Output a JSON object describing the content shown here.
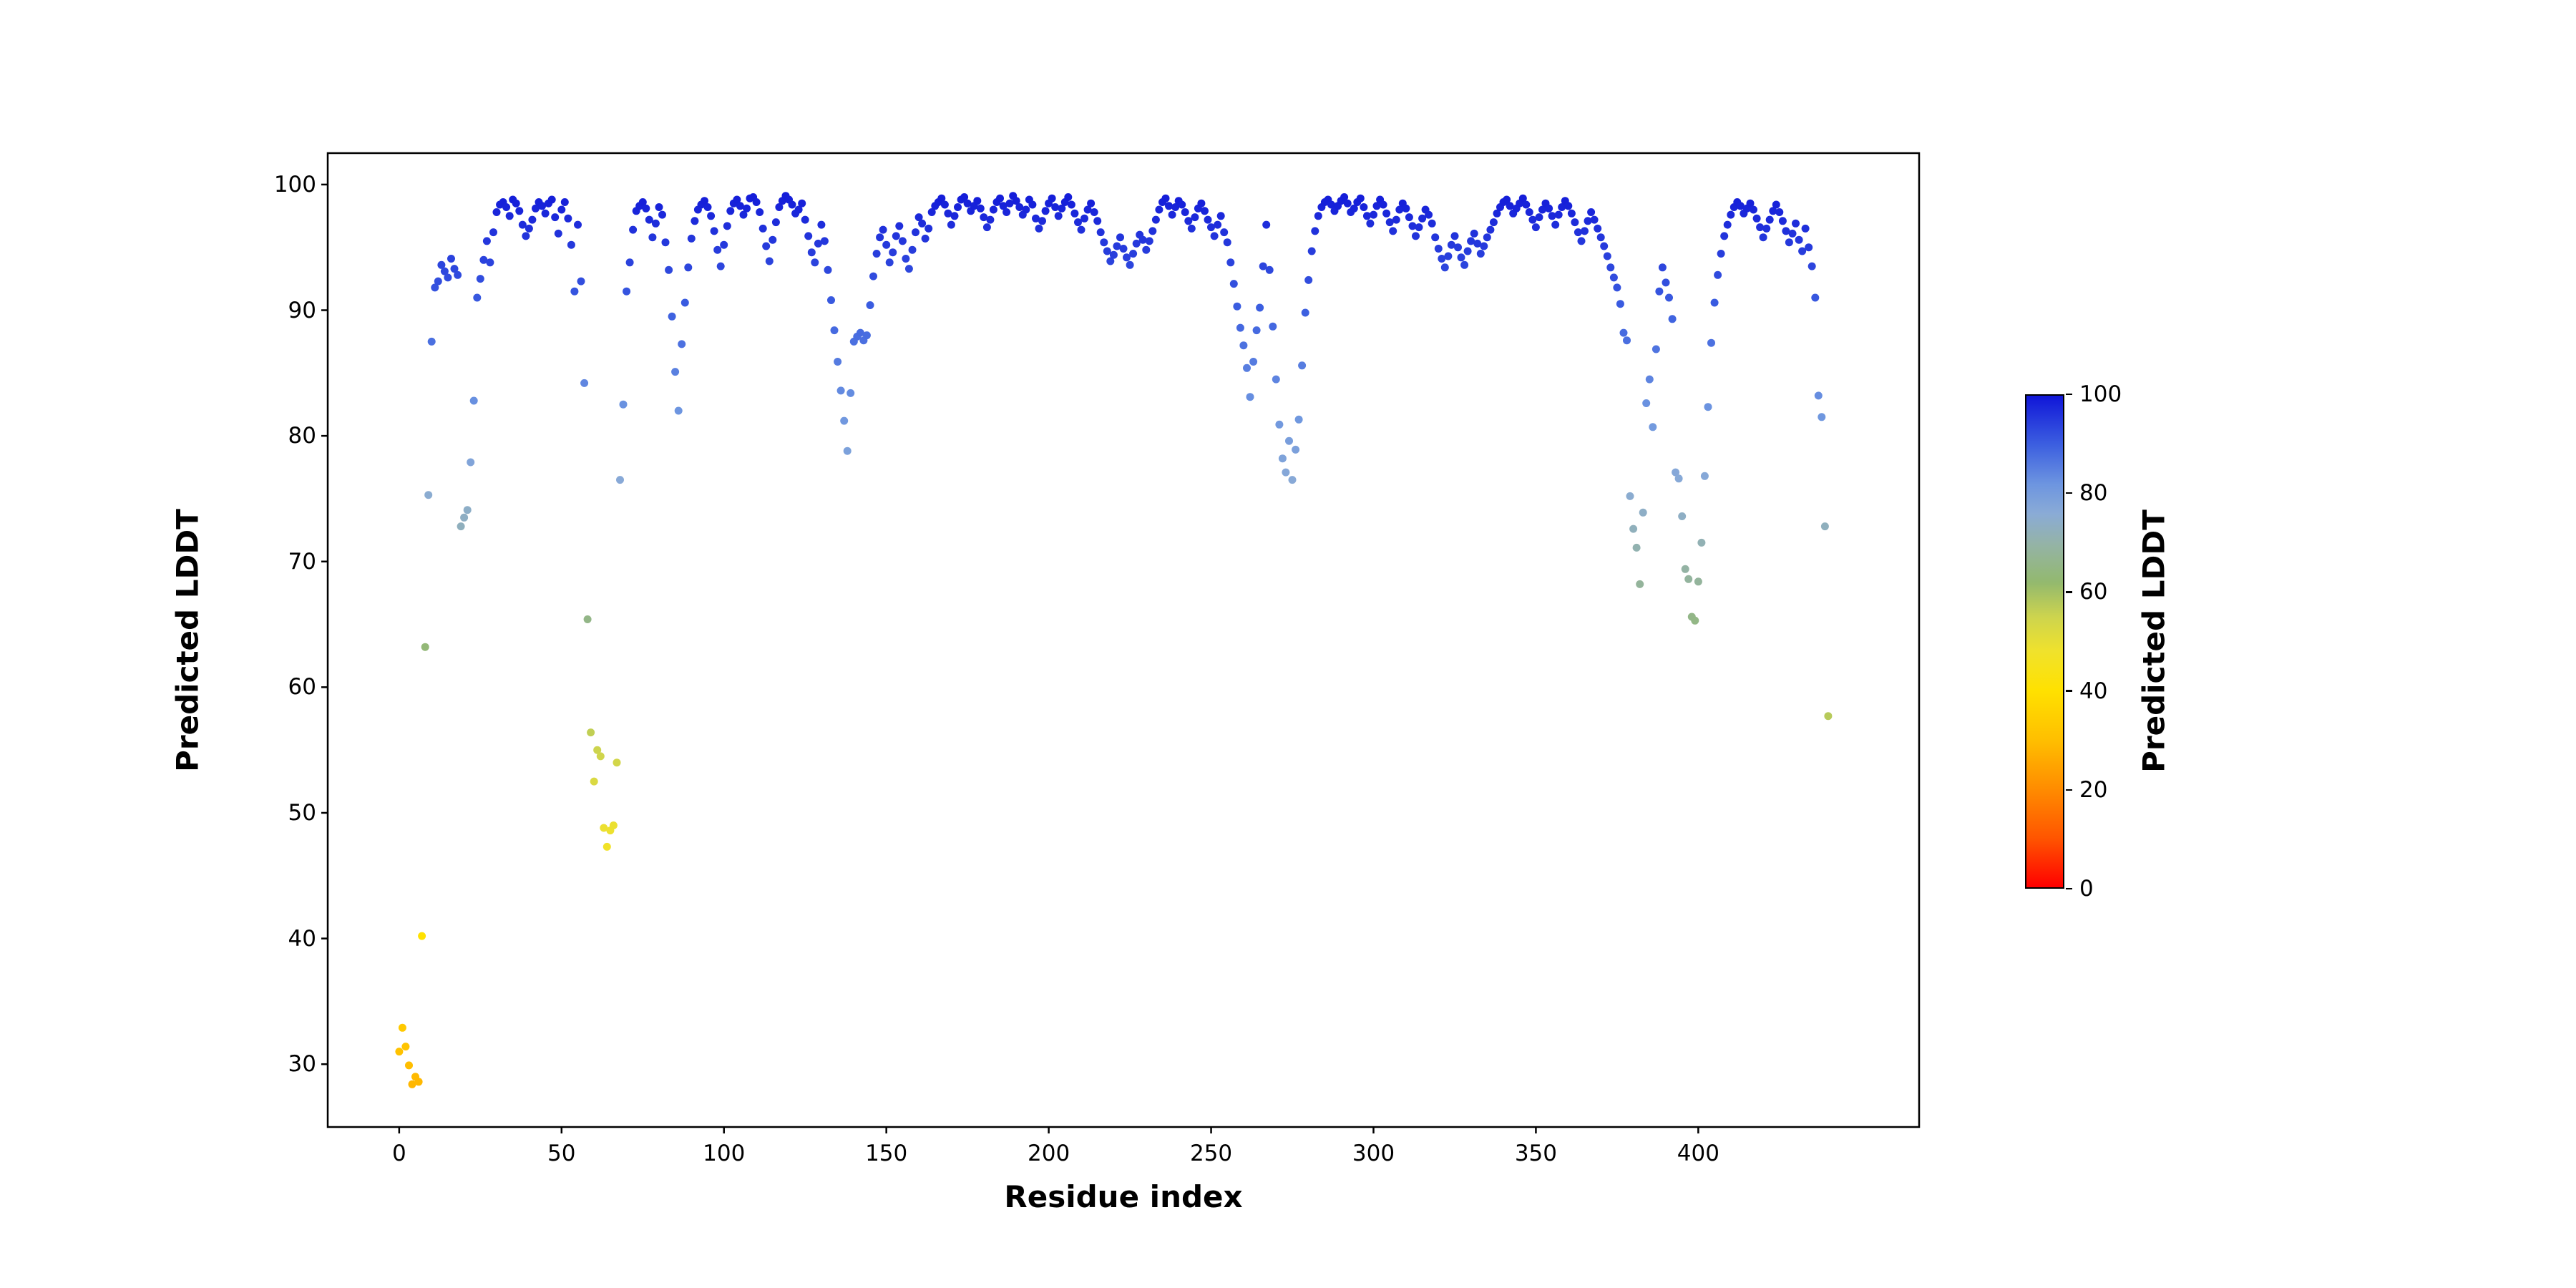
{
  "figure": {
    "background": "#ffffff",
    "xlabel": "Residue index",
    "ylabel": "Predicted LDDT",
    "colorbar_label": "Predicted LDDT",
    "x_ticks": [
      0,
      50,
      100,
      150,
      200,
      250,
      300,
      350,
      400
    ],
    "y_ticks": [
      30,
      40,
      50,
      60,
      70,
      80,
      90,
      100
    ],
    "colorbar_ticks": [
      0,
      20,
      40,
      60,
      80,
      100
    ],
    "colorbar_range": [
      0,
      100
    ],
    "spine_color": "#000000"
  },
  "colormap": {
    "description": "red-orange-yellow-green-blue colormap mapping Predicted LDDT 0-100",
    "stops": [
      {
        "v": 0,
        "color": "#ff0000"
      },
      {
        "v": 10,
        "color": "#ff5500"
      },
      {
        "v": 20,
        "color": "#ff8c00"
      },
      {
        "v": 30,
        "color": "#ffbf00"
      },
      {
        "v": 40,
        "color": "#ffe100"
      },
      {
        "v": 48,
        "color": "#f0e22c"
      },
      {
        "v": 55,
        "color": "#cdd44e"
      },
      {
        "v": 62,
        "color": "#93b96e"
      },
      {
        "v": 70,
        "color": "#94b3a8"
      },
      {
        "v": 76,
        "color": "#8aabd6"
      },
      {
        "v": 82,
        "color": "#6d95e0"
      },
      {
        "v": 90,
        "color": "#3c5fe0"
      },
      {
        "v": 100,
        "color": "#1016d8"
      }
    ]
  },
  "chart_data": {
    "type": "scatter",
    "title": "",
    "xlabel": "Residue index",
    "ylabel": "Predicted LDDT",
    "legend": "none",
    "grid": false,
    "color_encoding": "point color = y value (Predicted LDDT 0-100) through colormap; colorbar on right",
    "xlim": [
      -22,
      468
    ],
    "ylim": [
      25,
      102.5
    ],
    "x0": 0,
    "dx": 1,
    "x_rule": "residue index equals array position (0..440)",
    "y": [
      31.0,
      32.9,
      31.4,
      29.9,
      28.4,
      29.0,
      28.6,
      40.2,
      63.2,
      75.3,
      87.5,
      91.8,
      92.3,
      93.6,
      93.1,
      92.6,
      94.1,
      93.3,
      92.8,
      72.8,
      73.5,
      74.1,
      77.9,
      82.8,
      91.0,
      92.5,
      94.0,
      95.5,
      93.8,
      96.2,
      97.8,
      98.4,
      98.6,
      98.2,
      97.5,
      98.8,
      98.5,
      97.9,
      96.8,
      95.9,
      96.5,
      97.2,
      98.1,
      98.6,
      98.3,
      97.7,
      98.5,
      98.8,
      97.4,
      96.1,
      98.0,
      98.6,
      97.3,
      95.2,
      91.5,
      96.8,
      92.3,
      84.2,
      65.4,
      56.4,
      52.5,
      55.0,
      54.5,
      48.8,
      47.3,
      48.6,
      49.0,
      54.0,
      76.5,
      82.5,
      91.5,
      93.8,
      96.4,
      97.9,
      98.3,
      98.6,
      98.1,
      97.2,
      95.8,
      96.9,
      98.2,
      97.6,
      95.4,
      93.2,
      89.5,
      85.1,
      82.0,
      87.3,
      90.6,
      93.4,
      95.7,
      97.1,
      98.0,
      98.4,
      98.7,
      98.2,
      97.5,
      96.3,
      94.8,
      93.5,
      95.2,
      96.7,
      97.9,
      98.5,
      98.8,
      98.3,
      97.6,
      98.1,
      98.9,
      99.0,
      98.6,
      97.8,
      96.5,
      95.1,
      93.9,
      95.6,
      97.0,
      98.2,
      98.7,
      99.1,
      98.8,
      98.4,
      97.7,
      98.0,
      98.5,
      97.2,
      95.9,
      94.6,
      93.8,
      95.3,
      96.8,
      95.5,
      93.2,
      90.8,
      88.4,
      85.9,
      83.6,
      81.2,
      78.8,
      83.4,
      87.5,
      87.9,
      88.2,
      87.6,
      88.0,
      90.4,
      92.7,
      94.5,
      95.8,
      96.4,
      95.2,
      93.8,
      94.6,
      95.9,
      96.7,
      95.5,
      94.1,
      93.3,
      94.8,
      96.2,
      97.4,
      96.9,
      95.7,
      96.5,
      97.8,
      98.3,
      98.6,
      98.9,
      98.4,
      97.7,
      96.8,
      97.5,
      98.2,
      98.8,
      99.0,
      98.5,
      97.9,
      98.3,
      98.7,
      98.1,
      97.4,
      96.6,
      97.2,
      98.0,
      98.6,
      98.9,
      98.3,
      97.8,
      98.5,
      99.1,
      98.7,
      98.2,
      97.6,
      98.0,
      98.8,
      98.4,
      97.3,
      96.5,
      97.1,
      97.9,
      98.5,
      98.9,
      98.2,
      97.5,
      98.1,
      98.6,
      99.0,
      98.4,
      97.7,
      97.0,
      96.4,
      97.3,
      98.0,
      98.5,
      97.8,
      97.1,
      96.2,
      95.4,
      94.7,
      93.9,
      94.4,
      95.1,
      95.8,
      94.9,
      94.2,
      93.6,
      94.5,
      95.3,
      96.0,
      95.6,
      94.8,
      95.5,
      96.3,
      97.2,
      98.0,
      98.6,
      98.9,
      98.3,
      97.6,
      98.2,
      98.7,
      98.4,
      97.8,
      97.1,
      96.5,
      97.4,
      98.1,
      98.5,
      97.9,
      97.2,
      96.6,
      95.9,
      96.8,
      97.5,
      96.2,
      95.4,
      93.8,
      92.1,
      90.3,
      88.6,
      87.2,
      85.4,
      83.1,
      85.9,
      88.4,
      90.2,
      93.5,
      96.8,
      93.2,
      88.7,
      84.5,
      80.9,
      78.2,
      77.1,
      79.6,
      76.5,
      78.9,
      81.3,
      85.6,
      89.8,
      92.4,
      94.7,
      96.3,
      97.5,
      98.2,
      98.6,
      98.8,
      98.4,
      97.9,
      98.3,
      98.7,
      99.0,
      98.5,
      97.8,
      98.1,
      98.6,
      98.9,
      98.2,
      97.5,
      96.9,
      97.6,
      98.3,
      98.8,
      98.4,
      97.7,
      97.0,
      96.3,
      97.2,
      98.0,
      98.5,
      98.1,
      97.4,
      96.7,
      95.9,
      96.6,
      97.3,
      98.0,
      97.6,
      96.9,
      95.8,
      94.9,
      94.1,
      93.4,
      94.3,
      95.2,
      95.9,
      95.0,
      94.2,
      93.6,
      94.7,
      95.5,
      96.1,
      95.3,
      94.5,
      95.1,
      95.8,
      96.4,
      97.0,
      97.7,
      98.2,
      98.6,
      98.8,
      98.3,
      97.7,
      98.1,
      98.5,
      98.9,
      98.4,
      97.8,
      97.2,
      96.6,
      97.4,
      98.0,
      98.5,
      98.1,
      97.5,
      96.8,
      97.6,
      98.2,
      98.7,
      98.3,
      97.7,
      97.0,
      96.2,
      95.5,
      96.3,
      97.1,
      97.8,
      97.2,
      96.5,
      95.8,
      95.1,
      94.3,
      93.4,
      92.6,
      91.8,
      90.5,
      88.2,
      87.6,
      75.2,
      72.6,
      71.1,
      68.2,
      73.9,
      82.6,
      84.5,
      80.7,
      86.9,
      91.5,
      93.4,
      92.2,
      91.0,
      89.3,
      77.1,
      76.6,
      73.6,
      69.4,
      68.6,
      65.6,
      65.3,
      68.4,
      71.5,
      76.8,
      82.3,
      87.4,
      90.6,
      92.8,
      94.5,
      95.9,
      96.8,
      97.6,
      98.2,
      98.6,
      98.3,
      97.7,
      98.1,
      98.5,
      98.0,
      97.3,
      96.6,
      95.8,
      96.5,
      97.2,
      97.9,
      98.4,
      97.8,
      97.1,
      96.3,
      95.4,
      96.1,
      96.9,
      95.6,
      94.7,
      96.5,
      95.0,
      93.5,
      91.0,
      83.2,
      81.5,
      72.8,
      57.7
    ]
  }
}
